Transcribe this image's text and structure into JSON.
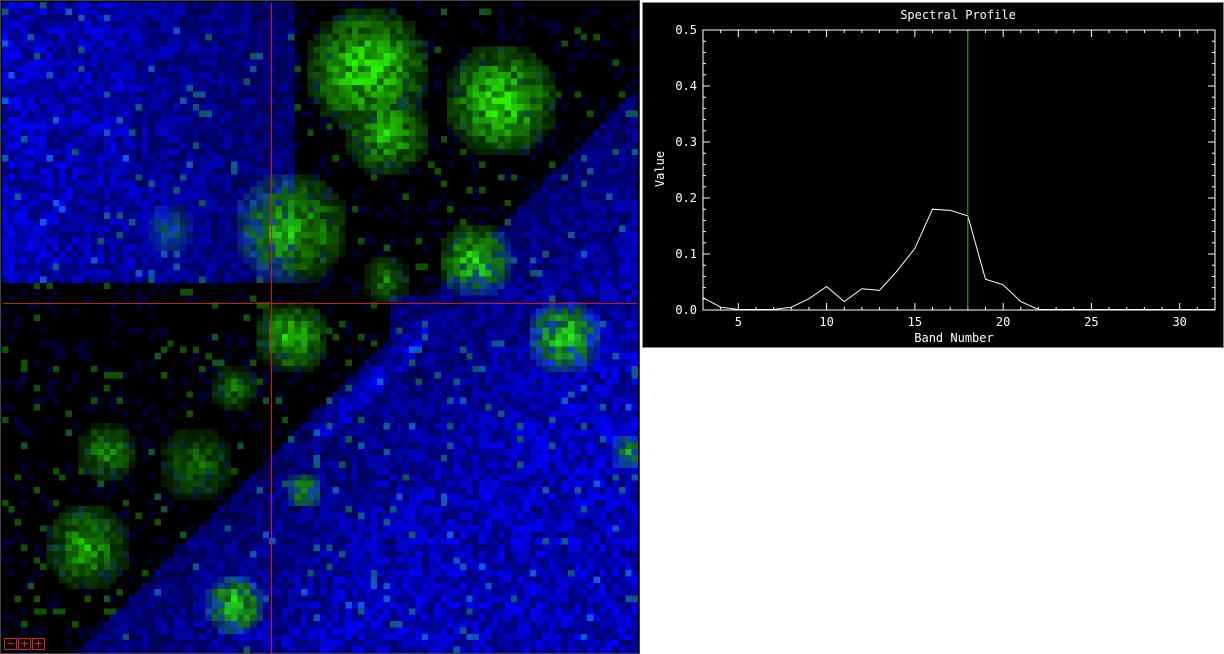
{
  "image_view": {
    "colors": {
      "background": "#000000",
      "vegetation": "#1ef01e",
      "water": "#1a1aff",
      "crosshair": "#d01818"
    },
    "crosshair_cell": {
      "column": 42,
      "row": 47
    },
    "grid_size": {
      "columns": 100,
      "rows": 102
    }
  },
  "zoom_controls": [
    "zoom-out-icon",
    "zoom-in-icon",
    "zoom-reset-icon"
  ],
  "chart_data": {
    "type": "line",
    "title": "Spectral Profile",
    "xlabel": "Band Number",
    "ylabel": "Value",
    "xlim": [
      3,
      32
    ],
    "ylim": [
      0,
      0.5
    ],
    "x_ticks": [
      5,
      10,
      15,
      20,
      25,
      30
    ],
    "y_ticks": [
      0.0,
      0.1,
      0.2,
      0.3,
      0.4,
      0.5
    ],
    "y_tick_labels": [
      "0.0",
      "0.1",
      "0.2",
      "0.3",
      "0.4",
      "0.5"
    ],
    "series": [
      {
        "color": "#ffffff",
        "x": [
          3,
          4,
          5,
          6,
          7,
          8,
          9,
          10,
          11,
          12,
          13,
          14,
          15,
          16,
          17,
          18,
          19,
          20,
          21,
          22,
          23,
          24,
          25,
          26,
          27,
          28,
          29,
          30,
          31,
          32
        ],
        "y": [
          0.022,
          0.005,
          0.001,
          0.001,
          0.001,
          0.005,
          0.02,
          0.042,
          0.015,
          0.038,
          0.035,
          0.07,
          0.11,
          0.18,
          0.178,
          0.168,
          0.055,
          0.045,
          0.015,
          0.001,
          0.001,
          0.001,
          0.001,
          0.001,
          0.001,
          0.001,
          0.001,
          0.001,
          0.001,
          0.001
        ]
      }
    ],
    "current_band": 18,
    "current_band_color": "#1ec81e"
  }
}
